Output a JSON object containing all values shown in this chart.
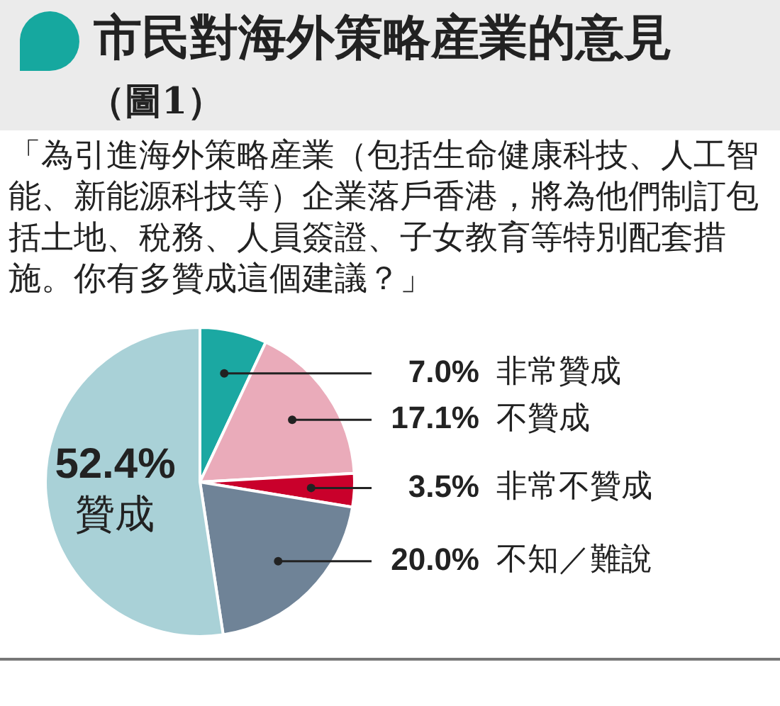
{
  "chart_data": {
    "type": "pie",
    "title": "市民對海外策略産業的意見",
    "subtitle": "（圖1）",
    "annotations": [
      "「為引進海外策略産業（包括生命健康科技、人工智能、新能源科技等）企業落戶香港，將為他們制訂包括土地、稅務、人員簽證、子女教育等特別配套措施。你有多贊成這個建議？」"
    ],
    "categories": [
      "非常贊成",
      "不贊成",
      "非常不贊成",
      "不知／難說",
      "贊成"
    ],
    "values": [
      7.0,
      17.1,
      3.5,
      20.0,
      52.4
    ],
    "value_labels": [
      "7.0%",
      "17.1%",
      "3.5%",
      "20.0%",
      "52.4%"
    ],
    "colors": [
      "#1ba8a2",
      "#eaabba",
      "#c9002b",
      "#6f8397",
      "#a9d1d7"
    ],
    "legend": false
  }
}
